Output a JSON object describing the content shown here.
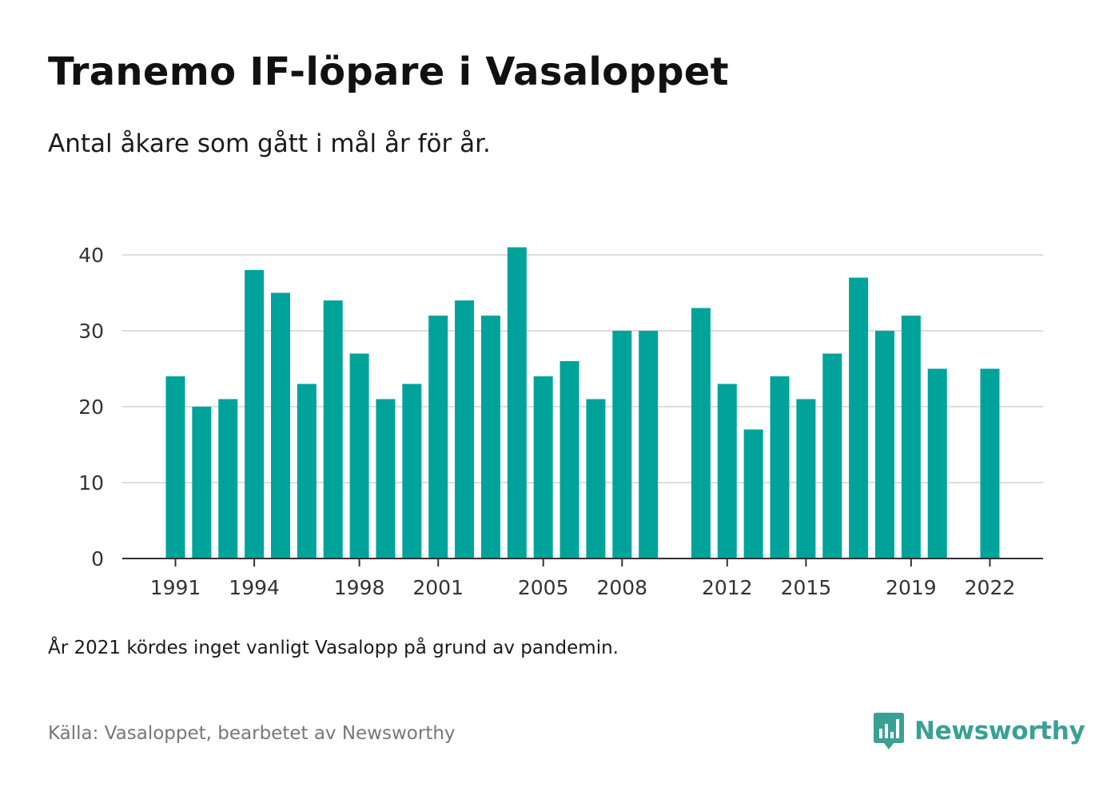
{
  "header": {
    "title": "Tranemo IF-löpare i Vasaloppet",
    "subtitle": "Antal åkare som gått i mål år för år."
  },
  "chart_data": {
    "type": "bar",
    "x": [
      1991,
      1992,
      1993,
      1994,
      1995,
      1996,
      1997,
      1998,
      1999,
      2000,
      2001,
      2002,
      2003,
      2004,
      2005,
      2006,
      2007,
      2008,
      2009,
      2010,
      2011,
      2012,
      2013,
      2014,
      2015,
      2016,
      2017,
      2018,
      2019,
      2020,
      2021,
      2022
    ],
    "values": [
      24,
      20,
      21,
      38,
      35,
      23,
      34,
      27,
      21,
      23,
      32,
      34,
      32,
      41,
      24,
      26,
      21,
      30,
      30,
      null,
      33,
      23,
      17,
      24,
      21,
      27,
      37,
      30,
      32,
      25,
      null,
      25
    ],
    "x_tick_labels": [
      "1991",
      "1994",
      "1998",
      "2001",
      "2005",
      "2008",
      "2012",
      "2015",
      "2019",
      "2022"
    ],
    "y_ticks": [
      0,
      10,
      20,
      30,
      40
    ],
    "ylim": [
      0,
      42
    ],
    "grid": true,
    "bar_color": "#00a39a"
  },
  "footer": {
    "note": "År 2021 kördes inget vanligt Vasalopp på grund av pandemin.",
    "source": "Källa: Vasaloppet, bearbetet av Newsworthy",
    "brand": "Newsworthy",
    "brand_icon": "newsworthy-logo-icon",
    "brand_color": "#3aa095"
  }
}
